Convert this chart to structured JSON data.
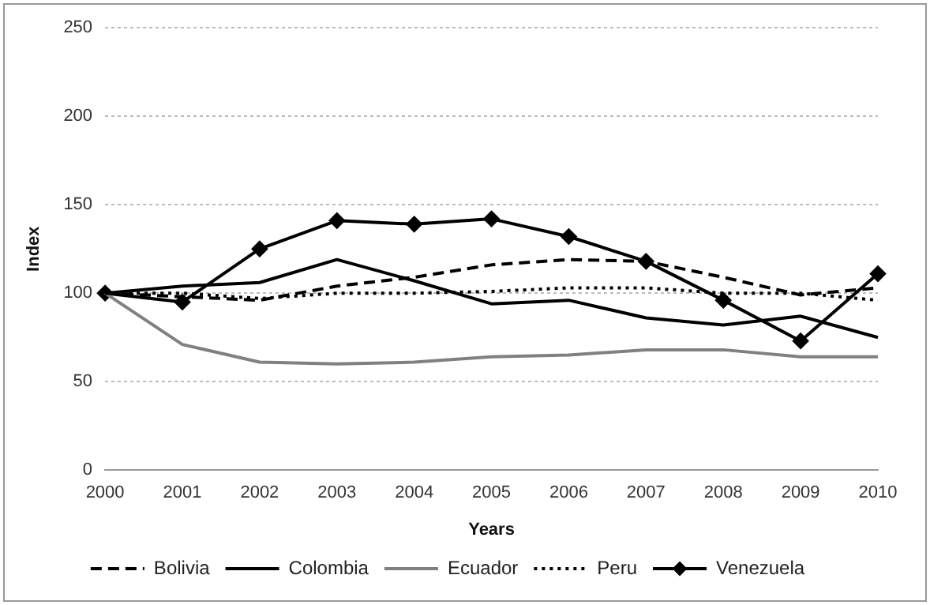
{
  "chart_data": {
    "type": "line",
    "xlabel": "Years",
    "ylabel": "Index",
    "categories": [
      "2000",
      "2001",
      "2002",
      "2003",
      "2004",
      "2005",
      "2006",
      "2007",
      "2008",
      "2009",
      "2010"
    ],
    "series": [
      {
        "name": "Bolivia",
        "color": "#000000",
        "line_style": "dashed",
        "marker": "none",
        "values": [
          100,
          98,
          96,
          104,
          109,
          116,
          119,
          118,
          109,
          99,
          103
        ]
      },
      {
        "name": "Colombia",
        "color": "#000000",
        "line_style": "solid",
        "marker": "none",
        "values": [
          100,
          104,
          106,
          119,
          107,
          94,
          96,
          86,
          82,
          87,
          75
        ]
      },
      {
        "name": "Ecuador",
        "color": "#808080",
        "line_style": "solid",
        "marker": "none",
        "values": [
          100,
          71,
          61,
          60,
          61,
          64,
          65,
          68,
          68,
          64,
          64
        ]
      },
      {
        "name": "Peru",
        "color": "#000000",
        "line_style": "dotted",
        "marker": "none",
        "values": [
          100,
          100,
          97,
          100,
          100,
          101,
          103,
          103,
          100,
          100,
          96
        ]
      },
      {
        "name": "Venezuela",
        "color": "#000000",
        "line_style": "solid",
        "marker": "diamond",
        "values": [
          100,
          95,
          125,
          141,
          139,
          142,
          132,
          118,
          96,
          73,
          111
        ]
      }
    ],
    "ylim": [
      0,
      250
    ],
    "yticks": [
      0,
      50,
      100,
      150,
      200,
      250
    ],
    "grid": "y",
    "legend": "bottom"
  }
}
